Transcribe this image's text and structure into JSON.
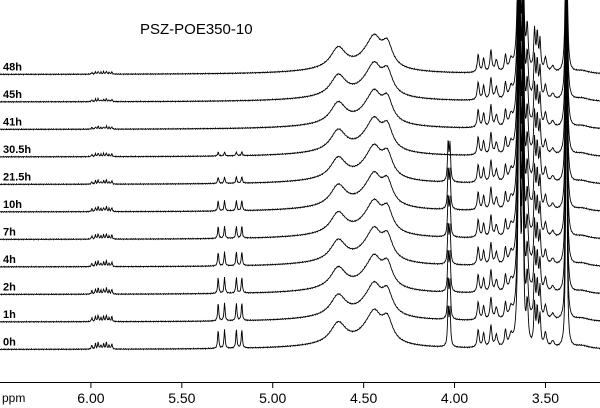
{
  "chart_data": {
    "type": "line",
    "title": "PSZ-POE350-10",
    "xlabel": "ppm",
    "x_unit": "ppm",
    "xlim": [
      6.5,
      3.2
    ],
    "x_reversed": true,
    "ticks": [
      6.0,
      5.5,
      5.0,
      4.5,
      4.0,
      3.5
    ],
    "tick_labels": [
      "6.00",
      "5.50",
      "5.00",
      "4.50",
      "4.00",
      "3.50"
    ],
    "y_axis_shown": false,
    "grid": false,
    "legend": "none",
    "line_color": "#000000",
    "series": [
      {
        "name": "48h",
        "peaks": {
          "vinyl": 0.0,
          "ch4.03": 0.0
        }
      },
      {
        "name": "45h",
        "peaks": {
          "vinyl": 0.0,
          "ch4.03": 0.0
        }
      },
      {
        "name": "41h",
        "peaks": {
          "vinyl": 0.0,
          "ch4.03": 0.0
        }
      },
      {
        "name": "30.5h",
        "peaks": {
          "vinyl": 0.2,
          "ch4.03": 0.0
        }
      },
      {
        "name": "21.5h",
        "peaks": {
          "vinyl": 0.35,
          "ch4.03": 1.0
        }
      },
      {
        "name": "10h",
        "peaks": {
          "vinyl": 0.55,
          "ch4.03": 1.0
        }
      },
      {
        "name": "7h",
        "peaks": {
          "vinyl": 0.65,
          "ch4.03": 1.0
        }
      },
      {
        "name": "4h",
        "peaks": {
          "vinyl": 0.75,
          "ch4.03": 1.0
        }
      },
      {
        "name": "2h",
        "peaks": {
          "vinyl": 0.85,
          "ch4.03": 1.0
        }
      },
      {
        "name": "1h",
        "peaks": {
          "vinyl": 0.95,
          "ch4.03": 1.0
        }
      },
      {
        "name": "0h",
        "peaks": {
          "vinyl": 1.0,
          "ch4.03": 1.0
        }
      }
    ],
    "signals": [
      {
        "ppm": 5.96,
        "shape": "multiplet"
      },
      {
        "ppm": 5.29,
        "shape": "doublet"
      },
      {
        "ppm": 5.18,
        "shape": "doublet"
      },
      {
        "ppm": 4.64,
        "shape": "broad"
      },
      {
        "ppm": 4.44,
        "shape": "broad"
      },
      {
        "ppm": 4.38,
        "shape": "broad"
      },
      {
        "ppm": 4.03,
        "shape": "sharp"
      },
      {
        "ppm": 3.86,
        "shape": "multiplet"
      },
      {
        "ppm": 3.64,
        "shape": "sharp-intense"
      },
      {
        "ppm": 3.55,
        "shape": "multiplet"
      },
      {
        "ppm": 3.38,
        "shape": "sharp-intense"
      }
    ]
  }
}
